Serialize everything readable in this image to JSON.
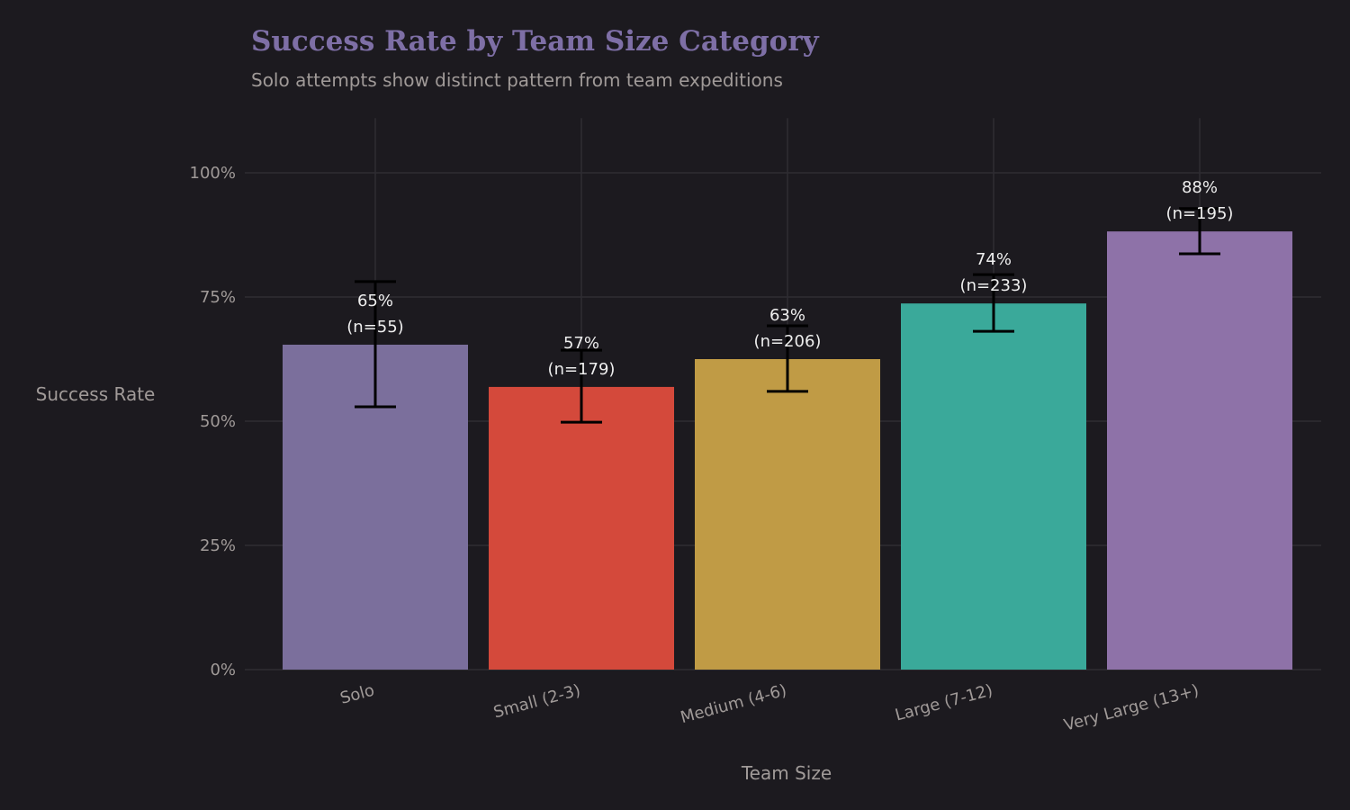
{
  "chart_data": {
    "type": "bar",
    "title": "Success Rate by Team Size Category",
    "subtitle": "Solo attempts show distinct pattern from team expeditions",
    "xlabel": "Team Size",
    "ylabel": "Success Rate",
    "categories": [
      "Solo",
      "Small (2-3)",
      "Medium (4-6)",
      "Large (7-12)",
      "Very Large (13+)"
    ],
    "values": [
      0.654,
      0.569,
      0.625,
      0.737,
      0.882
    ],
    "error_low": [
      0.529,
      0.498,
      0.56,
      0.681,
      0.837
    ],
    "error_high": [
      0.781,
      0.643,
      0.692,
      0.795,
      0.928
    ],
    "value_labels": [
      "65%",
      "57%",
      "63%",
      "74%",
      "88%"
    ],
    "n_labels": [
      "(n=55)",
      "(n=179)",
      "(n=206)",
      "(n=233)",
      "(n=195)"
    ],
    "colors": [
      "#7b6f9c",
      "#d4493b",
      "#c09b45",
      "#3aa99a",
      "#8e72a8"
    ],
    "ylim": [
      0,
      1.11
    ],
    "yticks": [
      0,
      0.25,
      0.5,
      0.75,
      1.0
    ],
    "ytick_labels": [
      "0%",
      "25%",
      "50%",
      "75%",
      "100%"
    ],
    "grid": true,
    "legend": "none"
  }
}
